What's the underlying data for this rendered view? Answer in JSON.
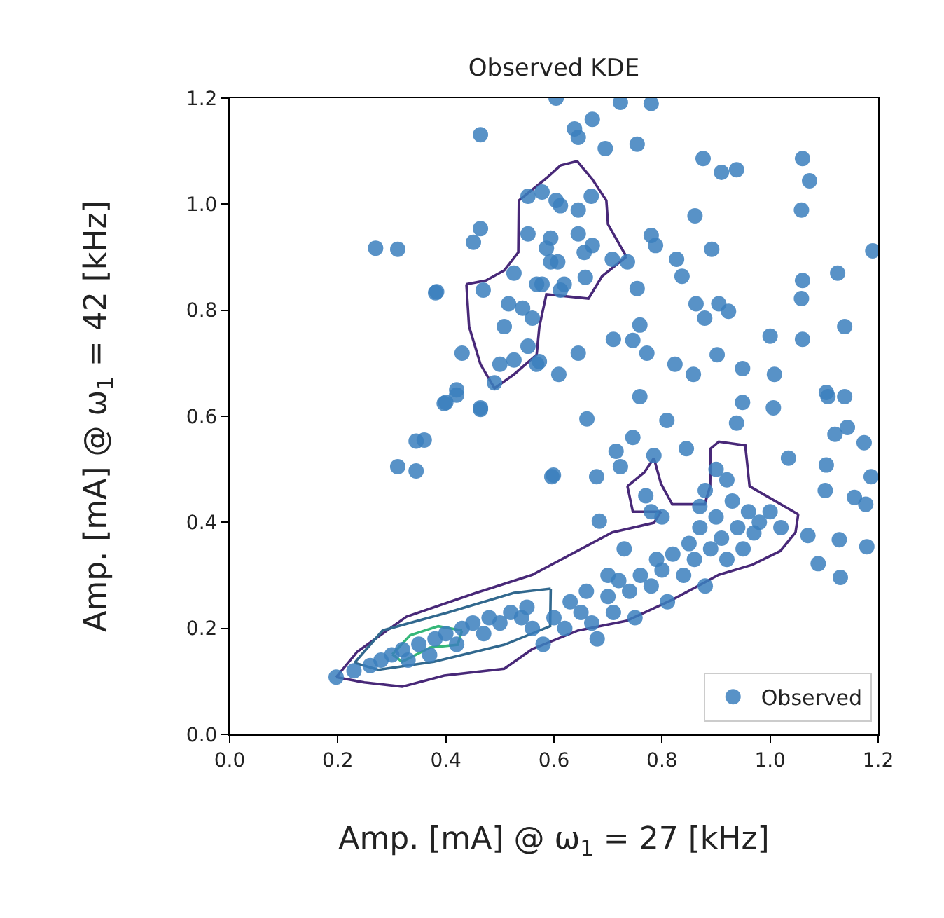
{
  "chart_data": {
    "type": "line",
    "title": "Observed KDE",
    "xlabel": "Amp. [mA] @ ω$_{1}$ = 27 [kHz]",
    "ylabel": "Amp. [mA] @ ω$_{1}$ = 42 [kHz]",
    "xlim": [
      0.0,
      1.2
    ],
    "ylim": [
      0.0,
      1.2
    ],
    "xticks": [
      {
        "value": 0,
        "label": "0.0"
      },
      {
        "value": 0.2,
        "label": "0.2"
      },
      {
        "value": 0.4,
        "label": "0.4"
      },
      {
        "value": 0.6,
        "label": "0.6"
      },
      {
        "value": 0.8,
        "label": "0.8"
      },
      {
        "value": 1,
        "label": "1.0"
      },
      {
        "value": 1.2,
        "label": "1.2"
      }
    ],
    "yticks": [
      {
        "value": 0,
        "label": "0.0"
      },
      {
        "value": 0.2,
        "label": "0.2"
      },
      {
        "value": 0.4,
        "label": "0.4"
      },
      {
        "value": 0.6,
        "label": "0.6"
      },
      {
        "value": 0.8,
        "label": "0.8"
      },
      {
        "value": 1,
        "label": "1.0"
      },
      {
        "value": 1.2,
        "label": "1.2"
      }
    ],
    "legend": "bottom right",
    "marker": "circle",
    "series": [
      {
        "color": "#482878",
        "marker": "none",
        "x": [
          0.197,
          0.236,
          0.327,
          0.456,
          0.56,
          0.708,
          0.785,
          0.798
        ],
        "values": [
          0.108,
          0.156,
          0.222,
          0.267,
          0.301,
          0.381,
          0.399,
          0.42
        ]
      },
      {
        "color": "#482878",
        "marker": "none",
        "x": [
          0.798,
          0.746,
          0.736
        ],
        "values": [
          0.42,
          0.42,
          0.468
        ]
      },
      {
        "color": "#482878",
        "marker": "none",
        "x": [
          0.736,
          0.767,
          0.785,
          0.798,
          0.819,
          0.879,
          0.889,
          0.89,
          0.905,
          0.954,
          0.962,
          1.008,
          1.052
        ],
        "values": [
          0.468,
          0.494,
          0.521,
          0.473,
          0.434,
          0.434,
          0.468,
          0.539,
          0.552,
          0.545,
          0.468,
          0.441,
          0.415
        ]
      },
      {
        "color": "#482878",
        "marker": "none",
        "x": [
          1.052,
          1.047,
          1.019,
          0.967,
          0.905,
          0.819,
          0.734,
          0.645,
          0.56,
          0.508,
          0.397,
          0.319,
          0.249,
          0.197
        ],
        "values": [
          0.415,
          0.381,
          0.346,
          0.32,
          0.301,
          0.254,
          0.214,
          0.196,
          0.161,
          0.124,
          0.111,
          0.09,
          0.098,
          0.108
        ]
      },
      {
        "color": "#482878",
        "marker": "none",
        "x": [
          0.438,
          0.474,
          0.508,
          0.534,
          0.535,
          0.586,
          0.612,
          0.643,
          0.671,
          0.697,
          0.7,
          0.734
        ],
        "values": [
          0.849,
          0.856,
          0.875,
          0.909,
          1.007,
          1.049,
          1.073,
          1.081,
          1.047,
          1.007,
          0.962,
          0.901
        ]
      },
      {
        "color": "#482878",
        "marker": "none",
        "x": [
          0.734,
          0.689,
          0.664,
          0.586,
          0.573,
          0.568,
          0.526,
          0.49,
          0.464,
          0.443,
          0.438
        ],
        "values": [
          0.901,
          0.864,
          0.822,
          0.83,
          0.769,
          0.716,
          0.679,
          0.653,
          0.698,
          0.769,
          0.849
        ]
      },
      {
        "color": "#31688e",
        "marker": "none",
        "x": [
          0.231,
          0.283,
          0.404,
          0.526,
          0.594
        ],
        "values": [
          0.135,
          0.196,
          0.23,
          0.267,
          0.275
        ]
      },
      {
        "color": "#31688e",
        "marker": "none",
        "x": [
          0.594,
          0.593,
          0.508,
          0.378,
          0.275,
          0.231
        ],
        "values": [
          0.275,
          0.204,
          0.169,
          0.137,
          0.122,
          0.135
        ]
      },
      {
        "color": "#35b779",
        "marker": "none",
        "x": [
          0.301,
          0.334,
          0.386,
          0.43
        ],
        "values": [
          0.151,
          0.187,
          0.204,
          0.196
        ]
      },
      {
        "color": "#35b779",
        "marker": "none",
        "x": [
          0.43,
          0.422,
          0.371,
          0.319,
          0.301
        ],
        "values": [
          0.196,
          0.169,
          0.164,
          0.137,
          0.151
        ]
      },
      {
        "type": "scatter",
        "name": "Observed",
        "color": "#3b7fbd",
        "x": [
          0.464,
          0.27,
          0.311,
          0.381,
          0.345,
          0.36,
          0.311,
          0.345,
          0.4,
          0.42,
          0.464,
          0.599,
          0.383,
          0.464,
          0.451,
          0.43,
          0.42,
          0.397,
          0.464,
          0.526,
          0.568,
          0.508,
          0.542,
          0.552,
          0.5,
          0.526,
          0.49,
          0.573,
          0.552,
          0.604,
          0.552,
          0.586,
          0.594,
          0.612,
          0.469,
          0.56,
          0.516,
          0.604,
          0.723,
          0.78,
          0.671,
          0.638,
          0.645,
          0.695,
          0.754,
          0.876,
          0.91,
          0.938,
          1.06,
          1.073,
          1.058,
          0.861,
          0.578,
          0.612,
          0.645,
          0.669,
          0.594,
          0.645,
          0.656,
          0.671,
          0.607,
          0.708,
          0.736,
          0.578,
          0.619,
          0.658,
          0.78,
          0.788,
          0.827,
          0.837,
          0.892,
          0.754,
          0.863,
          0.879,
          0.905,
          0.923,
          0.759,
          0.71,
          0.746,
          0.772,
          0.645,
          0.568,
          0.609,
          0.824,
          0.858,
          0.902,
          0.949,
          1.008,
          1.0,
          1.06,
          1.058,
          1.06,
          1.125,
          1.138,
          1.19,
          0.759,
          0.949,
          1.006,
          1.104,
          1.138,
          0.661,
          0.746,
          0.809,
          0.938,
          0.715,
          0.723,
          0.785,
          0.845,
          0.596,
          0.679,
          1.034,
          1.104,
          1.12,
          1.143,
          1.174,
          1.102,
          1.187,
          1.156,
          1.177,
          1.107,
          0.684,
          1.089,
          1.13,
          1.179,
          1.07,
          1.128,
          0.197,
          0.23,
          0.26,
          0.28,
          0.3,
          0.32,
          0.33,
          0.35,
          0.37,
          0.38,
          0.4,
          0.42,
          0.43,
          0.45,
          0.47,
          0.48,
          0.5,
          0.52,
          0.54,
          0.55,
          0.56,
          0.58,
          0.6,
          0.62,
          0.63,
          0.65,
          0.66,
          0.67,
          0.68,
          0.7,
          0.71,
          0.72,
          0.74,
          0.75,
          0.76,
          0.78,
          0.79,
          0.8,
          0.81,
          0.82,
          0.84,
          0.85,
          0.86,
          0.87,
          0.88,
          0.89,
          0.9,
          0.91,
          0.92,
          0.93,
          0.94,
          0.95,
          0.96,
          0.97,
          0.98,
          1.0,
          1.02,
          0.92,
          0.9,
          0.88,
          0.78,
          0.77,
          0.8,
          0.87,
          0.73,
          0.7
        ],
        "values": [
          1.131,
          0.917,
          0.915,
          0.833,
          0.553,
          0.555,
          0.505,
          0.497,
          0.626,
          0.64,
          0.613,
          0.489,
          0.835,
          0.954,
          0.928,
          0.719,
          0.65,
          0.624,
          0.616,
          0.87,
          0.849,
          0.769,
          0.804,
          0.732,
          0.698,
          0.706,
          0.663,
          0.703,
          1.015,
          1.007,
          0.944,
          0.917,
          0.891,
          0.838,
          0.838,
          0.785,
          0.812,
          1.2,
          1.192,
          1.19,
          1.16,
          1.142,
          1.126,
          1.105,
          1.113,
          1.086,
          1.06,
          1.065,
          1.086,
          1.044,
          0.989,
          0.978,
          1.023,
          0.997,
          0.989,
          1.015,
          0.936,
          0.944,
          0.909,
          0.922,
          0.891,
          0.896,
          0.891,
          0.849,
          0.849,
          0.862,
          0.941,
          0.922,
          0.896,
          0.864,
          0.915,
          0.841,
          0.812,
          0.785,
          0.812,
          0.798,
          0.772,
          0.745,
          0.743,
          0.719,
          0.719,
          0.698,
          0.679,
          0.698,
          0.679,
          0.716,
          0.69,
          0.679,
          0.751,
          0.745,
          0.822,
          0.856,
          0.87,
          0.769,
          0.912,
          0.637,
          0.626,
          0.616,
          0.645,
          0.637,
          0.595,
          0.56,
          0.592,
          0.587,
          0.534,
          0.505,
          0.526,
          0.539,
          0.486,
          0.486,
          0.521,
          0.508,
          0.566,
          0.579,
          0.55,
          0.46,
          0.486,
          0.447,
          0.434,
          0.637,
          0.402,
          0.322,
          0.296,
          0.354,
          0.375,
          0.367,
          0.108,
          0.12,
          0.13,
          0.14,
          0.15,
          0.16,
          0.14,
          0.17,
          0.15,
          0.18,
          0.19,
          0.17,
          0.2,
          0.21,
          0.19,
          0.22,
          0.21,
          0.23,
          0.22,
          0.24,
          0.2,
          0.17,
          0.22,
          0.2,
          0.25,
          0.23,
          0.27,
          0.21,
          0.18,
          0.26,
          0.23,
          0.29,
          0.27,
          0.22,
          0.3,
          0.28,
          0.33,
          0.31,
          0.25,
          0.34,
          0.3,
          0.36,
          0.33,
          0.39,
          0.28,
          0.35,
          0.41,
          0.37,
          0.33,
          0.44,
          0.39,
          0.35,
          0.42,
          0.38,
          0.4,
          0.42,
          0.39,
          0.48,
          0.5,
          0.46,
          0.42,
          0.45,
          0.41,
          0.43,
          0.35,
          0.3
        ]
      }
    ]
  }
}
